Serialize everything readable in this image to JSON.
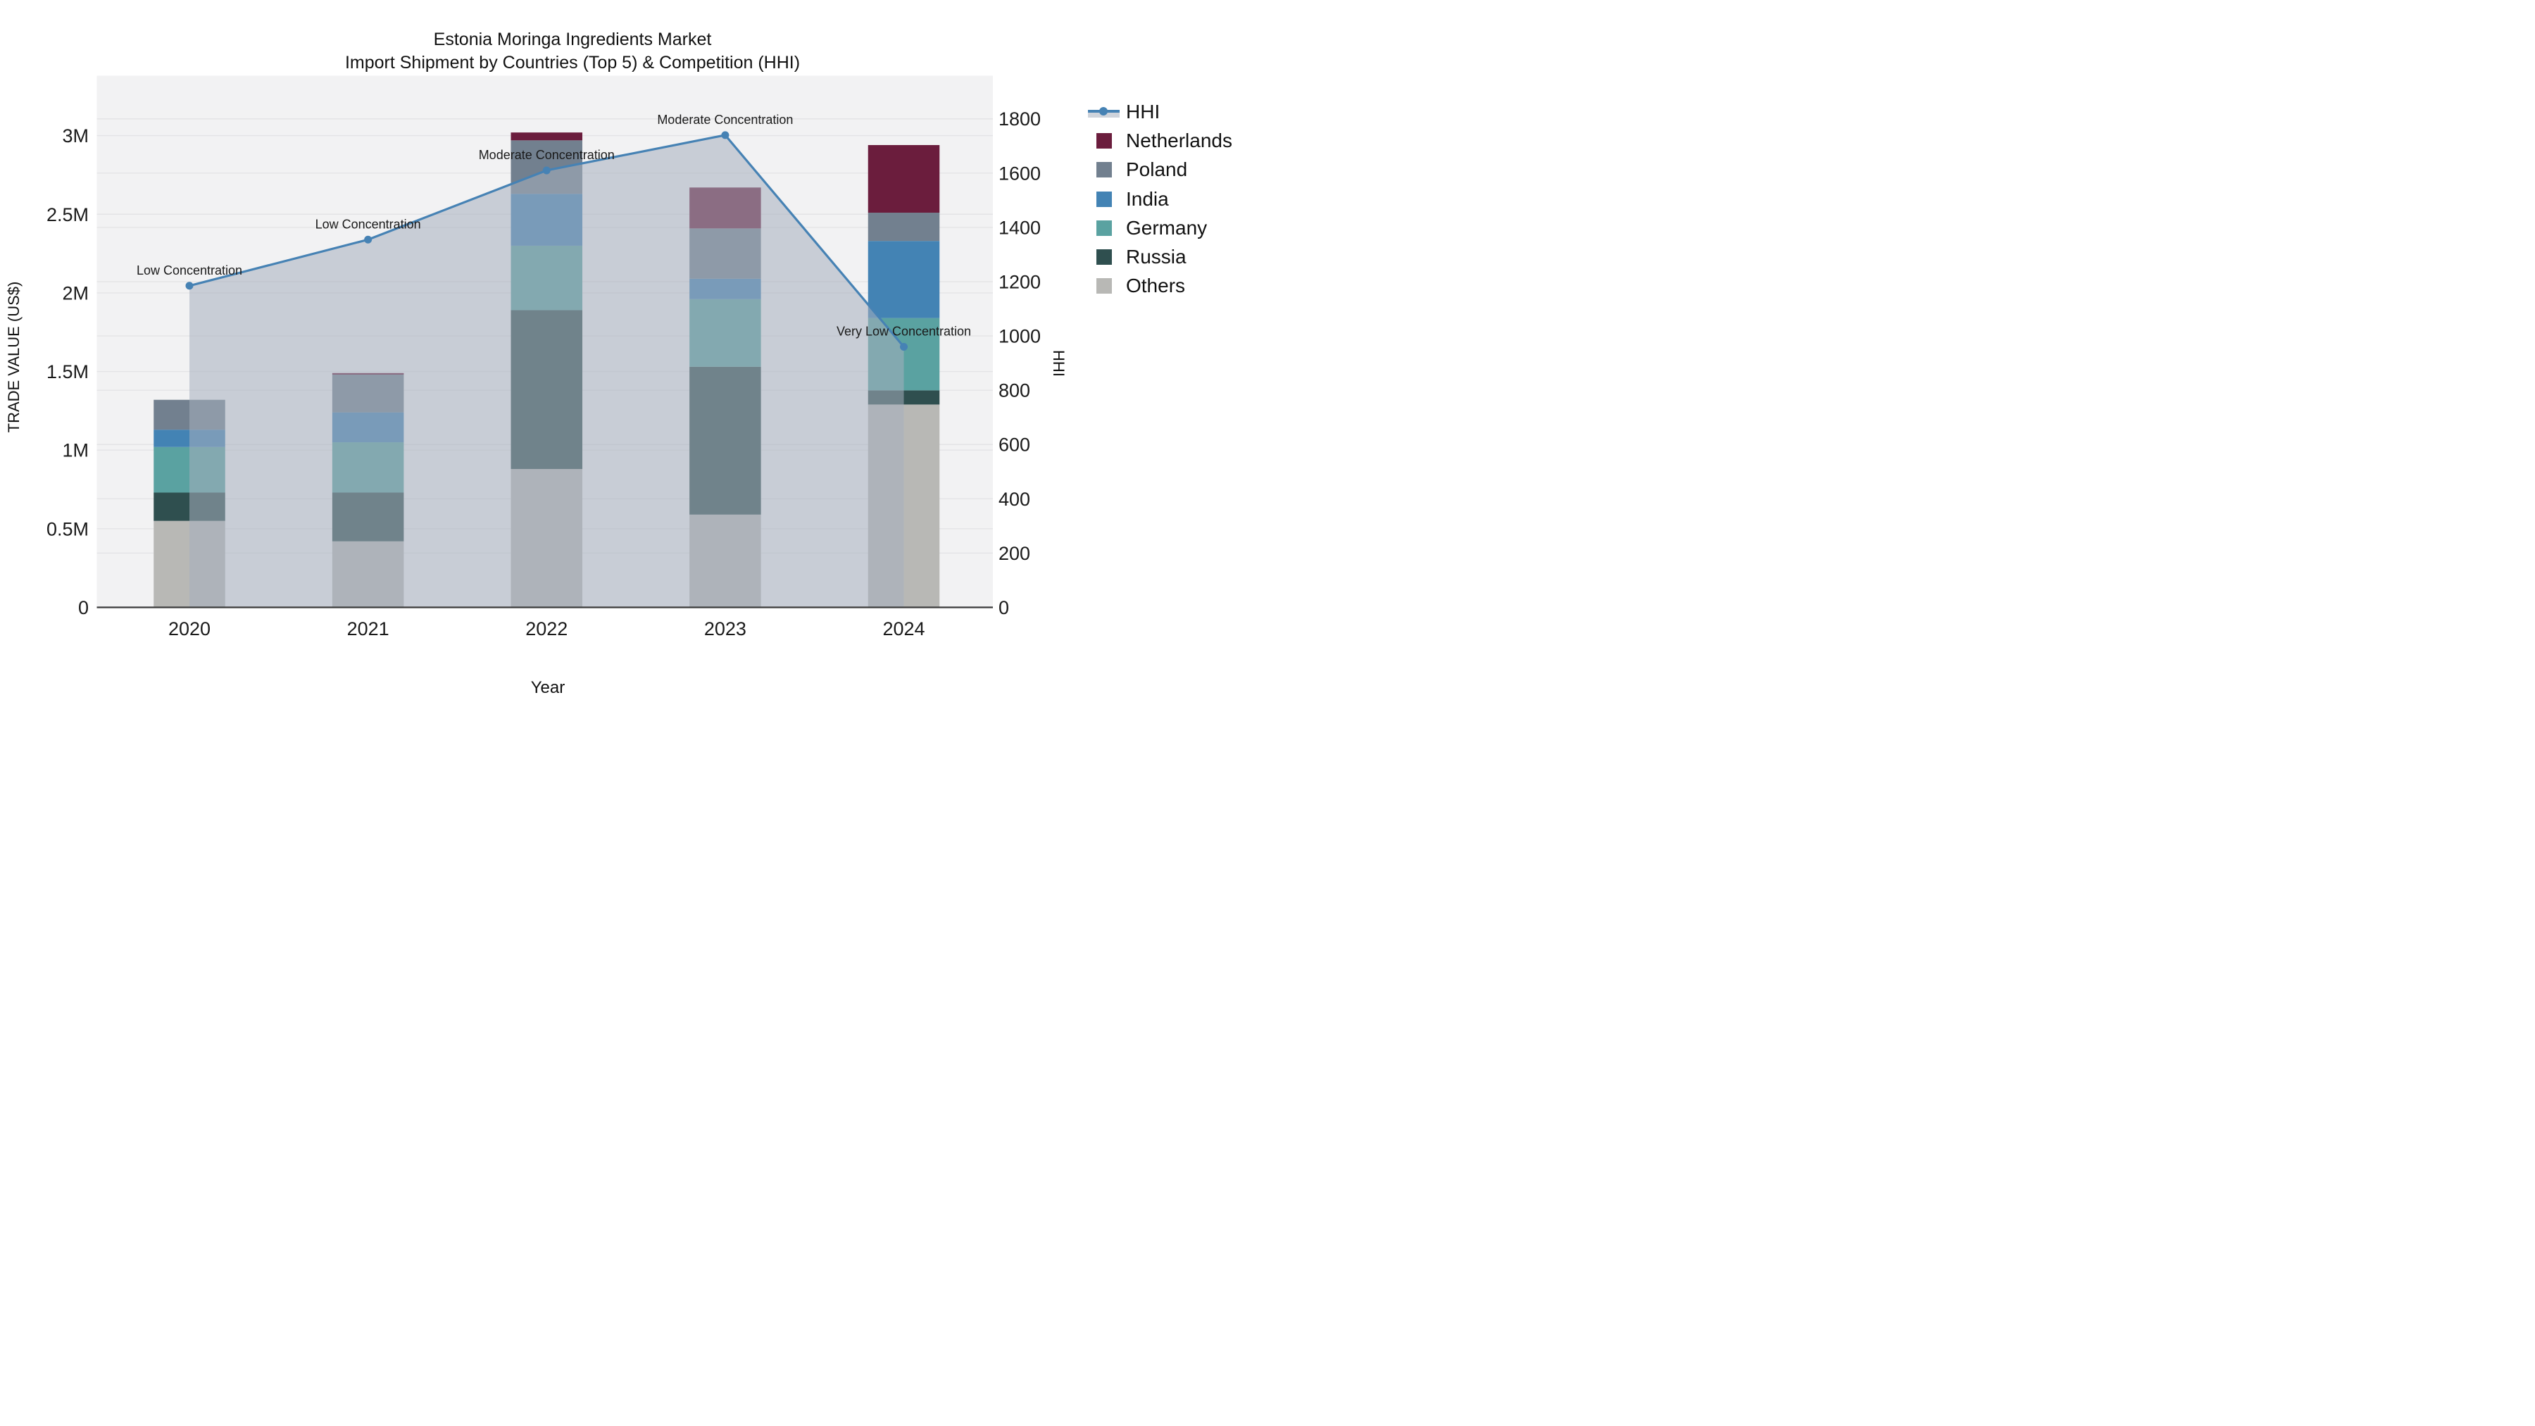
{
  "title": {
    "line1": "Estonia Moringa Ingredients Market",
    "line2": "Import Shipment by Countries (Top 5) & Competition (HHI)"
  },
  "colors": {
    "plot_background": "#f2f2f3",
    "gridline": "#e4e4e6",
    "axis_line": "#3a3a3a",
    "hhi_line": "#4682b4",
    "hhi_area_fill": "rgba(165,174,190,0.55)",
    "netherlands": "#6b1d3d",
    "poland": "#72808f",
    "india": "#4383b4",
    "germany": "#5aa2a1",
    "russia": "#2f4f4f",
    "others": "#b8b8b5"
  },
  "chart_data": {
    "type": "combo-stacked-bar-line",
    "categories": [
      "2020",
      "2021",
      "2022",
      "2023",
      "2024"
    ],
    "bar_series": [
      {
        "name": "Others",
        "color_key": "others",
        "values_musd": [
          0.55,
          0.42,
          0.88,
          0.59,
          1.29
        ]
      },
      {
        "name": "Russia",
        "color_key": "russia",
        "values_musd": [
          0.18,
          0.31,
          1.01,
          0.94,
          0.09
        ]
      },
      {
        "name": "Germany",
        "color_key": "germany",
        "values_musd": [
          0.29,
          0.32,
          0.41,
          0.43,
          0.46
        ]
      },
      {
        "name": "India",
        "color_key": "india",
        "values_musd": [
          0.11,
          0.19,
          0.33,
          0.13,
          0.49
        ]
      },
      {
        "name": "Poland",
        "color_key": "poland",
        "values_musd": [
          0.19,
          0.24,
          0.34,
          0.32,
          0.18
        ]
      },
      {
        "name": "Netherlands",
        "color_key": "netherlands",
        "values_musd": [
          0.0,
          0.01,
          0.05,
          0.26,
          0.43
        ]
      }
    ],
    "line_series": {
      "name": "HHI",
      "values": [
        1185,
        1355,
        1610,
        1740,
        960
      ],
      "annotations": [
        "Low Concentration",
        "Low Concentration",
        "Moderate Concentration",
        "Moderate Concentration",
        "Very Low Concentration"
      ]
    },
    "left_axis": {
      "label": "TRADE VALUE (US$)",
      "ticks": [
        "0",
        "0.5M",
        "1M",
        "1.5M",
        "2M",
        "2.5M",
        "3M"
      ],
      "tick_values": [
        0,
        0.5,
        1,
        1.5,
        2,
        2.5,
        3
      ],
      "range": [
        0,
        3.38
      ]
    },
    "right_axis": {
      "label": "HHI",
      "ticks": [
        "0",
        "200",
        "400",
        "600",
        "800",
        "1000",
        "1200",
        "1400",
        "1600",
        "1800"
      ],
      "tick_values": [
        0,
        200,
        400,
        600,
        800,
        1000,
        1200,
        1400,
        1600,
        1800
      ],
      "range": [
        0,
        1960
      ]
    },
    "x_axis": {
      "label": "Year"
    },
    "legend": [
      "HHI",
      "Netherlands",
      "Poland",
      "India",
      "Germany",
      "Russia",
      "Others"
    ],
    "grid": true,
    "legend_position": "right"
  }
}
